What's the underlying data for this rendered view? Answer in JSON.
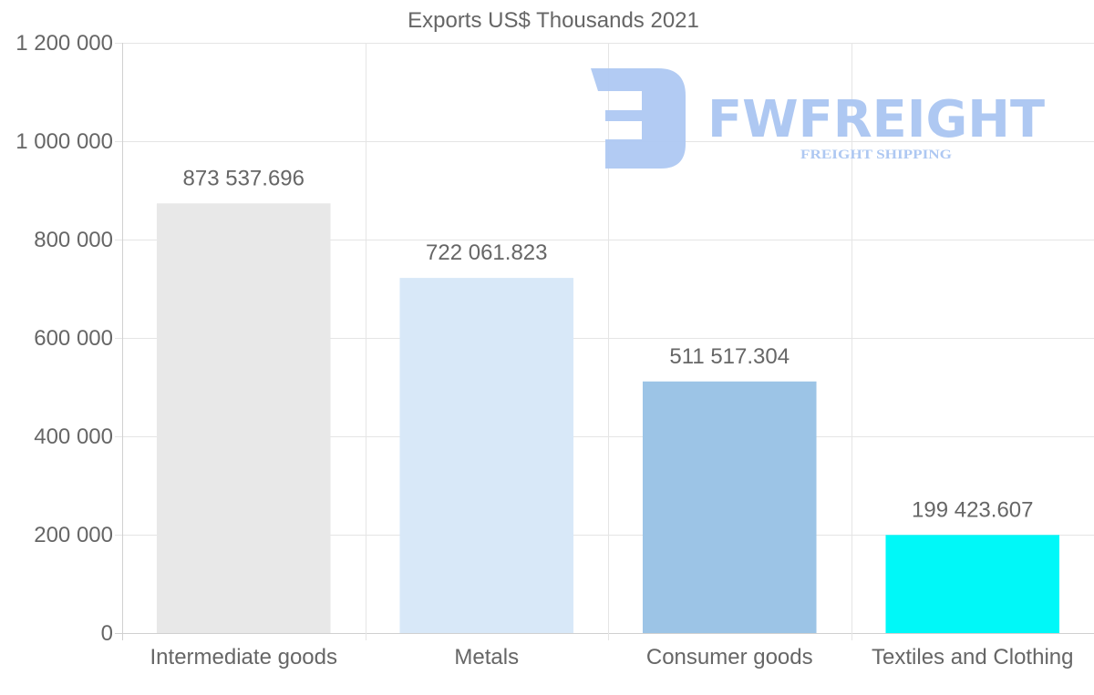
{
  "chart_data": {
    "type": "bar",
    "title": "Exports US$ Thousands 2021",
    "xlabel": "",
    "ylabel": "",
    "ylim": [
      0,
      1200000
    ],
    "yticks": [
      0,
      200000,
      400000,
      600000,
      800000,
      1000000,
      1200000
    ],
    "ytick_labels": [
      "0",
      "200 000",
      "400 000",
      "600 000",
      "800 000",
      "1 000 000",
      "1 200 000"
    ],
    "grid": true,
    "categories": [
      "Intermediate goods",
      "Metals",
      "Consumer goods",
      "Textiles and Clothing"
    ],
    "values": [
      873537.696,
      722061.823,
      511517.304,
      199423.607
    ],
    "data_labels": [
      "873 537.696",
      "722 061.823",
      "511 517.304",
      "199 423.607"
    ],
    "colors": [
      "#e8e8e8",
      "#d8e8f8",
      "#9cc4e6",
      "#00f8f8"
    ]
  },
  "watermark": {
    "brand": "FWFREIGHT",
    "tagline": "FREIGHT SHIPPING",
    "color": "#aec8f2"
  }
}
